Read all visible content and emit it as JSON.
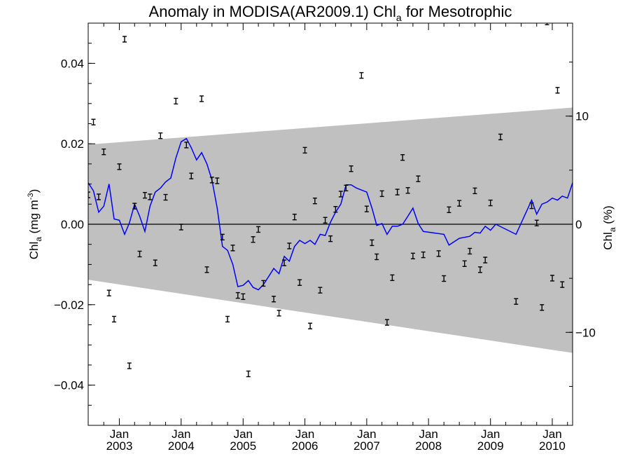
{
  "chart_data": {
    "type": "scatter",
    "title_main": "Anomaly in MODISA(AR2009.1) Chl",
    "title_sub": "a",
    "title_rest": " for Mesotrophic",
    "ylabel_left": {
      "base": "Chl",
      "sub": "a",
      "rest": " (mg m",
      "sup": "-3",
      "end": ")"
    },
    "ylabel_right": {
      "base": "Chl",
      "sub": "a",
      "rest": " (%)"
    },
    "xlim": [
      "2002-07-01",
      "2010-05-01"
    ],
    "ylim": [
      -0.05,
      0.05
    ],
    "right_ylim": [
      -18.6,
      18.6
    ],
    "x_ticks": [
      {
        "month": "Jan",
        "year": "2003",
        "date": "2003-01-01"
      },
      {
        "month": "Jan",
        "year": "2004",
        "date": "2004-01-01"
      },
      {
        "month": "Jan",
        "year": "2005",
        "date": "2005-01-01"
      },
      {
        "month": "Jan",
        "year": "2006",
        "date": "2006-01-01"
      },
      {
        "month": "Jan",
        "year": "2007",
        "date": "2007-01-01"
      },
      {
        "month": "Jan",
        "year": "2008",
        "date": "2008-01-01"
      },
      {
        "month": "Jan",
        "year": "2009",
        "date": "2009-01-01"
      },
      {
        "month": "Jan",
        "year": "2010",
        "date": "2010-01-01"
      }
    ],
    "y_ticks_left": [
      {
        "value": 0.04,
        "label": "0.04"
      },
      {
        "value": 0.02,
        "label": "0.02"
      },
      {
        "value": 0.0,
        "label": "0.00"
      },
      {
        "value": -0.02,
        "label": "−0.02"
      },
      {
        "value": -0.04,
        "label": "−0.04"
      }
    ],
    "y_ticks_right": [
      {
        "value": 10,
        "label": "10"
      },
      {
        "value": 0,
        "label": "0"
      },
      {
        "value": -10,
        "label": "−10"
      }
    ],
    "band": {
      "color": "#c0c0c0",
      "start": {
        "x": "2002-07-01",
        "upper": 0.0198,
        "lower": -0.0138
      },
      "end": {
        "x": "2010-05-01",
        "upper": 0.029,
        "lower": -0.032
      }
    },
    "zero_line": true,
    "points": [
      {
        "x": "2002-07-01",
        "y": 0.0073
      },
      {
        "x": "2002-08-01",
        "y": 0.0254
      },
      {
        "x": "2002-09-01",
        "y": 0.0068
      },
      {
        "x": "2002-10-01",
        "y": 0.018
      },
      {
        "x": "2002-11-01",
        "y": -0.0171
      },
      {
        "x": "2002-12-01",
        "y": -0.0236
      },
      {
        "x": "2003-01-01",
        "y": 0.0143
      },
      {
        "x": "2003-02-01",
        "y": 0.046
      },
      {
        "x": "2003-03-01",
        "y": -0.0352
      },
      {
        "x": "2003-04-01",
        "y": 0.0045
      },
      {
        "x": "2003-05-01",
        "y": -0.0074
      },
      {
        "x": "2003-06-01",
        "y": 0.0072
      },
      {
        "x": "2003-07-01",
        "y": 0.0068
      },
      {
        "x": "2003-08-01",
        "y": -0.0096
      },
      {
        "x": "2003-09-01",
        "y": 0.022
      },
      {
        "x": "2003-10-01",
        "y": 0.0067
      },
      {
        "x": "2003-12-01",
        "y": 0.0306
      },
      {
        "x": "2004-01-01",
        "y": -0.0007
      },
      {
        "x": "2004-02-01",
        "y": 0.0197
      },
      {
        "x": "2004-03-01",
        "y": 0.012
      },
      {
        "x": "2004-05-01",
        "y": 0.0312
      },
      {
        "x": "2004-06-01",
        "y": -0.0113
      },
      {
        "x": "2004-07-01",
        "y": 0.011
      },
      {
        "x": "2004-08-01",
        "y": 0.0108
      },
      {
        "x": "2004-09-01",
        "y": -0.0032
      },
      {
        "x": "2004-10-01",
        "y": -0.0236
      },
      {
        "x": "2004-11-01",
        "y": -0.0059
      },
      {
        "x": "2004-12-01",
        "y": -0.0177
      },
      {
        "x": "2005-01-01",
        "y": -0.018
      },
      {
        "x": "2005-02-01",
        "y": -0.0372
      },
      {
        "x": "2005-03-01",
        "y": -0.0038
      },
      {
        "x": "2005-04-01",
        "y": -0.0013
      },
      {
        "x": "2005-05-01",
        "y": -0.0147
      },
      {
        "x": "2005-07-01",
        "y": -0.0186
      },
      {
        "x": "2005-08-01",
        "y": -0.0221
      },
      {
        "x": "2005-09-01",
        "y": -0.0096
      },
      {
        "x": "2005-10-01",
        "y": -0.0054
      },
      {
        "x": "2005-11-01",
        "y": 0.0018
      },
      {
        "x": "2005-12-01",
        "y": -0.0145
      },
      {
        "x": "2006-01-01",
        "y": 0.0184
      },
      {
        "x": "2006-02-01",
        "y": -0.0253
      },
      {
        "x": "2006-03-01",
        "y": 0.0058
      },
      {
        "x": "2006-04-01",
        "y": -0.0164
      },
      {
        "x": "2006-05-01",
        "y": 0.001
      },
      {
        "x": "2006-06-01",
        "y": -0.0036
      },
      {
        "x": "2006-07-01",
        "y": 0.0037
      },
      {
        "x": "2006-08-01",
        "y": 0.0075
      },
      {
        "x": "2006-09-01",
        "y": 0.009
      },
      {
        "x": "2006-10-01",
        "y": 0.0138
      },
      {
        "x": "2006-12-01",
        "y": 0.037
      },
      {
        "x": "2007-01-01",
        "y": 0.0038
      },
      {
        "x": "2007-02-01",
        "y": -0.0046
      },
      {
        "x": "2007-03-01",
        "y": -0.0081
      },
      {
        "x": "2007-04-01",
        "y": 0.0076
      },
      {
        "x": "2007-05-01",
        "y": -0.0244
      },
      {
        "x": "2007-06-01",
        "y": -0.0133
      },
      {
        "x": "2007-07-01",
        "y": 0.008
      },
      {
        "x": "2007-08-01",
        "y": 0.0166
      },
      {
        "x": "2007-09-01",
        "y": 0.0084
      },
      {
        "x": "2007-10-01",
        "y": -0.0079
      },
      {
        "x": "2007-11-01",
        "y": 0.0113
      },
      {
        "x": "2007-12-01",
        "y": -0.0076
      },
      {
        "x": "2008-03-01",
        "y": -0.0073
      },
      {
        "x": "2008-04-01",
        "y": -0.0135
      },
      {
        "x": "2008-05-01",
        "y": 0.0036
      },
      {
        "x": "2008-07-01",
        "y": 0.0052
      },
      {
        "x": "2008-08-01",
        "y": -0.0098
      },
      {
        "x": "2008-09-01",
        "y": -0.0067
      },
      {
        "x": "2008-10-01",
        "y": 0.0083
      },
      {
        "x": "2008-11-01",
        "y": -0.0113
      },
      {
        "x": "2008-12-01",
        "y": -0.0089
      },
      {
        "x": "2009-01-01",
        "y": 0.0053
      },
      {
        "x": "2009-03-01",
        "y": 0.0217
      },
      {
        "x": "2009-06-01",
        "y": -0.0192
      },
      {
        "x": "2009-09-01",
        "y": 0.0046
      },
      {
        "x": "2009-10-01",
        "y": 0.0003
      },
      {
        "x": "2009-11-01",
        "y": -0.0207
      },
      {
        "x": "2009-12-01",
        "y": 0.0503
      },
      {
        "x": "2010-01-01",
        "y": -0.0134
      },
      {
        "x": "2010-02-01",
        "y": 0.0333
      },
      {
        "x": "2010-03-01",
        "y": -0.015
      }
    ],
    "line": {
      "color": "#0000ff",
      "points": [
        {
          "x": "2002-07-01",
          "y": 0.0103
        },
        {
          "x": "2002-08-01",
          "y": 0.0083
        },
        {
          "x": "2002-09-01",
          "y": 0.003
        },
        {
          "x": "2002-10-01",
          "y": 0.0045
        },
        {
          "x": "2002-11-01",
          "y": 0.01
        },
        {
          "x": "2002-12-01",
          "y": 0.0013
        },
        {
          "x": "2003-01-01",
          "y": 0.001
        },
        {
          "x": "2003-02-01",
          "y": -0.0025
        },
        {
          "x": "2003-03-01",
          "y": 0.0003
        },
        {
          "x": "2003-04-01",
          "y": 0.005
        },
        {
          "x": "2003-05-01",
          "y": 0.002
        },
        {
          "x": "2003-06-01",
          "y": -0.0018
        },
        {
          "x": "2003-07-01",
          "y": 0.0045
        },
        {
          "x": "2003-08-01",
          "y": 0.008
        },
        {
          "x": "2003-09-01",
          "y": 0.009
        },
        {
          "x": "2003-10-01",
          "y": 0.0105
        },
        {
          "x": "2003-11-01",
          "y": 0.0115
        },
        {
          "x": "2003-12-01",
          "y": 0.0165
        },
        {
          "x": "2004-01-01",
          "y": 0.0205
        },
        {
          "x": "2004-02-01",
          "y": 0.0213
        },
        {
          "x": "2004-03-01",
          "y": 0.019
        },
        {
          "x": "2004-04-01",
          "y": 0.016
        },
        {
          "x": "2004-05-01",
          "y": 0.0178
        },
        {
          "x": "2004-06-01",
          "y": 0.015
        },
        {
          "x": "2004-07-01",
          "y": 0.011
        },
        {
          "x": "2004-08-01",
          "y": 0.004
        },
        {
          "x": "2004-09-01",
          "y": -0.0055
        },
        {
          "x": "2004-10-01",
          "y": -0.0065
        },
        {
          "x": "2004-11-01",
          "y": -0.01
        },
        {
          "x": "2004-12-01",
          "y": -0.0155
        },
        {
          "x": "2005-01-01",
          "y": -0.0152
        },
        {
          "x": "2005-02-01",
          "y": -0.014
        },
        {
          "x": "2005-03-01",
          "y": -0.0157
        },
        {
          "x": "2005-04-01",
          "y": -0.0163
        },
        {
          "x": "2005-05-01",
          "y": -0.015
        },
        {
          "x": "2005-06-01",
          "y": -0.013
        },
        {
          "x": "2005-07-01",
          "y": -0.011
        },
        {
          "x": "2005-08-01",
          "y": -0.0123
        },
        {
          "x": "2005-09-01",
          "y": -0.008
        },
        {
          "x": "2005-10-01",
          "y": -0.0092
        },
        {
          "x": "2005-11-01",
          "y": -0.0055
        },
        {
          "x": "2005-12-01",
          "y": -0.004
        },
        {
          "x": "2006-01-01",
          "y": -0.0048
        },
        {
          "x": "2006-02-01",
          "y": -0.004
        },
        {
          "x": "2006-03-01",
          "y": -0.005
        },
        {
          "x": "2006-04-01",
          "y": -0.0025
        },
        {
          "x": "2006-05-01",
          "y": -0.0028
        },
        {
          "x": "2006-06-01",
          "y": 0.0005
        },
        {
          "x": "2006-07-01",
          "y": 0.003
        },
        {
          "x": "2006-08-01",
          "y": 0.005
        },
        {
          "x": "2006-09-01",
          "y": 0.0098
        },
        {
          "x": "2006-10-01",
          "y": 0.0098
        },
        {
          "x": "2006-11-01",
          "y": 0.009
        },
        {
          "x": "2006-12-01",
          "y": 0.0085
        },
        {
          "x": "2007-01-01",
          "y": 0.008
        },
        {
          "x": "2007-02-01",
          "y": 0.004
        },
        {
          "x": "2007-03-01",
          "y": -0.0003
        },
        {
          "x": "2007-04-01",
          "y": 0.0002
        },
        {
          "x": "2007-05-01",
          "y": -0.0025
        },
        {
          "x": "2007-06-01",
          "y": -0.0005
        },
        {
          "x": "2007-07-01",
          "y": -0.0005
        },
        {
          "x": "2007-08-01",
          "y": 0.0
        },
        {
          "x": "2007-09-01",
          "y": 0.002
        },
        {
          "x": "2007-10-01",
          "y": 0.004
        },
        {
          "x": "2007-11-01",
          "y": 0.0002
        },
        {
          "x": "2007-12-01",
          "y": -0.0018
        },
        {
          "x": "2008-04-01",
          "y": -0.0025
        },
        {
          "x": "2008-05-01",
          "y": -0.0052
        },
        {
          "x": "2008-07-01",
          "y": -0.0035
        },
        {
          "x": "2008-09-01",
          "y": -0.003
        },
        {
          "x": "2008-10-01",
          "y": -0.002
        },
        {
          "x": "2008-11-01",
          "y": -0.0022
        },
        {
          "x": "2008-12-01",
          "y": -0.0005
        },
        {
          "x": "2009-01-01",
          "y": -0.0015
        },
        {
          "x": "2009-02-01",
          "y": 0.0
        },
        {
          "x": "2009-06-01",
          "y": -0.0025
        },
        {
          "x": "2009-09-01",
          "y": 0.006
        },
        {
          "x": "2009-10-01",
          "y": 0.0025
        },
        {
          "x": "2009-11-01",
          "y": 0.005
        },
        {
          "x": "2009-12-01",
          "y": 0.0055
        },
        {
          "x": "2010-01-01",
          "y": 0.0065
        },
        {
          "x": "2010-02-01",
          "y": 0.006
        },
        {
          "x": "2010-03-01",
          "y": 0.007
        },
        {
          "x": "2010-04-01",
          "y": 0.0065
        },
        {
          "x": "2010-05-01",
          "y": 0.0103
        }
      ]
    }
  }
}
